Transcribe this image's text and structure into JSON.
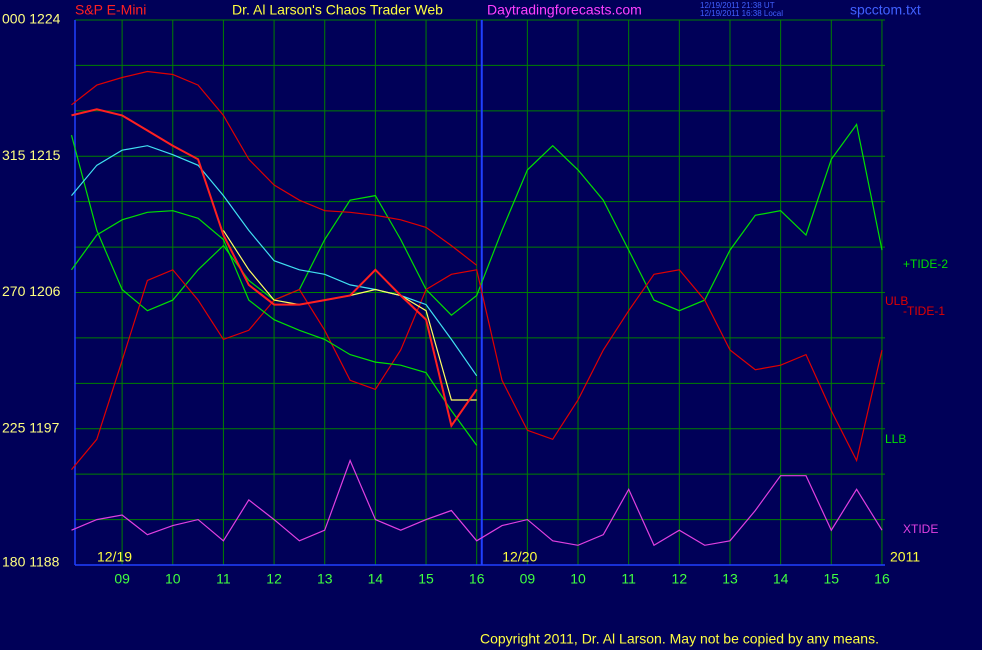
{
  "chart_data": {
    "type": "line",
    "instrument": "S&P E-Mini",
    "title": "Dr. Al Larson's Chaos Trader Web",
    "site": "Daytradingforecasts.com",
    "timestamps": [
      "12/19/2011 21:38 UT",
      "12/19/2011 16:38 Local"
    ],
    "filename": "spcctom.txt",
    "copyright": "Copyright 2011, Dr. Al Larson. May not be copied by any means.",
    "day_labels": [
      "12/19",
      "12/20"
    ],
    "year_label": "2011",
    "xlim": [
      -0.93,
      15.06
    ],
    "ylim": [
      1188,
      1224
    ],
    "yticks": [
      {
        "value": 1224,
        "label": "000 1224"
      },
      {
        "value": 1215,
        "label": "315 1215"
      },
      {
        "value": 1206,
        "label": "270 1206"
      },
      {
        "value": 1197,
        "label": "225 1197"
      },
      {
        "value": 1188,
        "label": "180 1188"
      }
    ],
    "ygrid": [
      1188,
      1191,
      1194,
      1197,
      1200,
      1203,
      1206,
      1209,
      1212,
      1215,
      1218,
      1221,
      1224
    ],
    "xticks": [
      {
        "value": 0,
        "label": "09"
      },
      {
        "value": 1,
        "label": "10"
      },
      {
        "value": 2,
        "label": "11"
      },
      {
        "value": 3,
        "label": "12"
      },
      {
        "value": 4,
        "label": "13"
      },
      {
        "value": 5,
        "label": "14"
      },
      {
        "value": 6,
        "label": "15"
      },
      {
        "value": 7,
        "label": "16"
      },
      {
        "value": 8,
        "label": "09"
      },
      {
        "value": 9,
        "label": "10"
      },
      {
        "value": 10,
        "label": "11"
      },
      {
        "value": 11,
        "label": "12"
      },
      {
        "value": 12,
        "label": "13"
      },
      {
        "value": 13,
        "label": "14"
      },
      {
        "value": 14,
        "label": "15"
      },
      {
        "value": 15,
        "label": "16"
      }
    ],
    "grid": true,
    "day_break_x": 7.1,
    "x": [
      -1,
      -0.5,
      0,
      0.5,
      1,
      1.5,
      2,
      2.5,
      3,
      3.5,
      4,
      4.5,
      5,
      5.5,
      6,
      6.5,
      7,
      7.5,
      8,
      8.5,
      9,
      9.5,
      10,
      10.5,
      11,
      11.5,
      12,
      12.5,
      13,
      13.5,
      14,
      14.5,
      15
    ],
    "series": [
      {
        "name": "+TIDE-2",
        "color": "#00e000",
        "values": [
          1216.4,
          1210.1,
          1206.2,
          1204.8,
          1205.5,
          1207.5,
          1209.1,
          1206.8,
          1205.5,
          1206.2,
          1209.5,
          1212.1,
          1212.4,
          1209.5,
          1206.2,
          1204.5,
          1205.8,
          1210.1,
          1214.1,
          1215.7,
          1214.1,
          1212.1,
          1208.8,
          1205.5,
          1204.8,
          1205.5,
          1208.8,
          1211.1,
          1211.4,
          1209.8,
          1214.8,
          1217.1,
          1208.8
        ]
      },
      {
        "name": "ULB",
        "color": "#e00000",
        "values": [
          1218.4,
          1219.7,
          1220.2,
          1220.6,
          1220.4,
          1219.7,
          1217.7,
          1214.8,
          1213.1,
          1212.1,
          1211.4,
          1211.3,
          1211.1,
          1210.8,
          1210.3,
          1209.1,
          1207.8,
          null,
          null,
          null,
          null,
          null,
          null,
          null,
          null,
          null,
          null,
          null,
          null,
          null,
          null,
          null,
          null
        ]
      },
      {
        "name": "-TIDE-1",
        "color": "#e00000",
        "values": [
          1194.3,
          1196.3,
          1201.5,
          1206.8,
          1207.5,
          1205.5,
          1202.9,
          1203.5,
          1205.5,
          1206.2,
          1203.5,
          1200.2,
          1199.6,
          1202.2,
          1206.2,
          1207.2,
          1207.5,
          1200.2,
          1196.9,
          1196.3,
          1198.9,
          1202.2,
          1204.8,
          1207.2,
          1207.5,
          1205.5,
          1202.2,
          1200.9,
          1201.2,
          1201.9,
          1198.2,
          1194.9,
          1202.2
        ]
      },
      {
        "name": "LLB",
        "color": "#00e000",
        "values": [
          1207.5,
          1209.8,
          1210.8,
          1211.3,
          1211.4,
          1210.9,
          1209.5,
          1205.5,
          1204.2,
          1203.5,
          1202.9,
          1201.9,
          1201.4,
          1201.2,
          1200.7,
          1198.2,
          1195.9,
          null,
          null,
          null,
          null,
          null,
          null,
          null,
          null,
          null,
          null,
          null,
          null,
          null,
          null,
          null,
          null
        ]
      },
      {
        "name": "XTIDE",
        "color": "#e040e0",
        "values": [
          1190.3,
          1191.0,
          1191.3,
          1190.0,
          1190.6,
          1191.0,
          1189.6,
          1192.3,
          1191.0,
          1189.6,
          1190.3,
          1194.9,
          1191.0,
          1190.3,
          1191.0,
          1191.6,
          1189.6,
          1190.6,
          1191.0,
          1189.6,
          1189.3,
          1190.0,
          1193.0,
          1189.3,
          1190.3,
          1189.3,
          1189.6,
          1191.6,
          1193.9,
          1193.9,
          1190.3,
          1193.0,
          1190.3
        ]
      },
      {
        "color": "#40e0f0",
        "values": [
          1212.4,
          1214.4,
          1215.4,
          1215.7,
          1215.1,
          1214.4,
          1212.4,
          1210.1,
          1208.1,
          1207.5,
          1207.2,
          1206.5,
          1206.2,
          1205.8,
          1205.2,
          1202.9,
          1200.5,
          null,
          null,
          null,
          null,
          null,
          null,
          null,
          null,
          null,
          null,
          null,
          null,
          null,
          null,
          null,
          null
        ]
      },
      {
        "color": "#ffff60",
        "values": [
          null,
          null,
          null,
          null,
          null,
          null,
          1210.1,
          1207.5,
          1205.5,
          1205.2,
          1205.5,
          1205.8,
          1206.2,
          1205.8,
          1204.8,
          1198.9,
          1198.9,
          null,
          null,
          null,
          null,
          null,
          null,
          null,
          null,
          null,
          null,
          null,
          null,
          null,
          null,
          null,
          null
        ]
      },
      {
        "color": "#ff2020",
        "values": [
          1217.7,
          1218.1,
          1217.7,
          1216.7,
          1215.7,
          1214.8,
          1209.8,
          1206.5,
          1205.2,
          1205.2,
          1205.5,
          1205.8,
          1207.5,
          1205.8,
          1204.2,
          1197.2,
          1199.6,
          null,
          null,
          null,
          null,
          null,
          null,
          null,
          null,
          null,
          null,
          null,
          null,
          null,
          null,
          null,
          null
        ]
      }
    ]
  }
}
